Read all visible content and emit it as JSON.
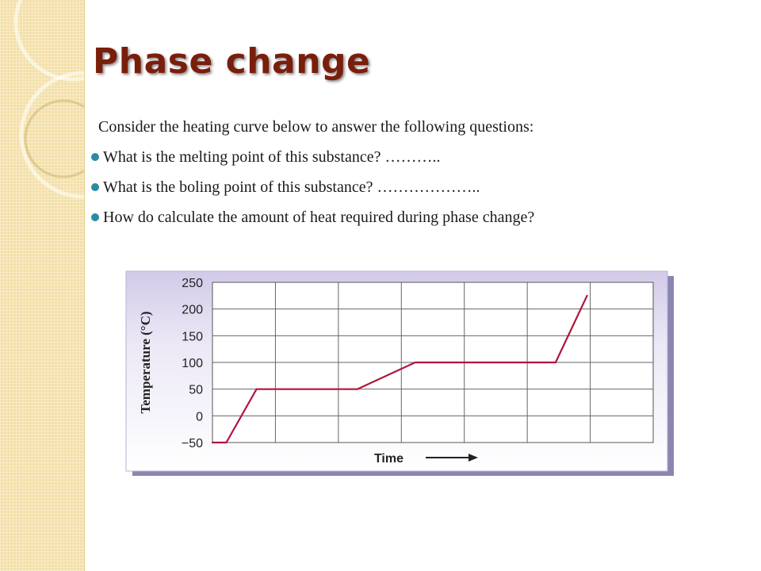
{
  "slide": {
    "title": "Phase change",
    "intro": "Consider the heating curve below to answer the following questions:",
    "questions": [
      "What is the melting point of this substance?  ………..",
      "What is the boling point of this substance? ………………..",
      "How do calculate the amount of heat required during  phase change?"
    ]
  },
  "colors": {
    "title": "#7a1e0c",
    "bullet": "#2b8aa6",
    "curve": "#b0153d",
    "chart_frame": "#c8bfe0",
    "chart_shadow": "#8a86b0",
    "side_strip": "#f3dfa6"
  },
  "chart_data": {
    "type": "line",
    "title": "",
    "xlabel": "Time",
    "ylabel": "Temperature (°C)",
    "xlim": [
      0,
      7
    ],
    "ylim": [
      -50,
      250
    ],
    "yticks": [
      250,
      200,
      150,
      100,
      50,
      0,
      -50
    ],
    "ytick_labels": [
      "250",
      "200",
      "150",
      "100",
      "50",
      "0",
      "−50"
    ],
    "grid": true,
    "series": [
      {
        "x": [
          0.0,
          0.22,
          0.7,
          2.3,
          3.22,
          5.45,
          5.95
        ],
        "y": [
          -50,
          -50,
          50,
          50,
          100,
          100,
          225
        ]
      }
    ]
  }
}
